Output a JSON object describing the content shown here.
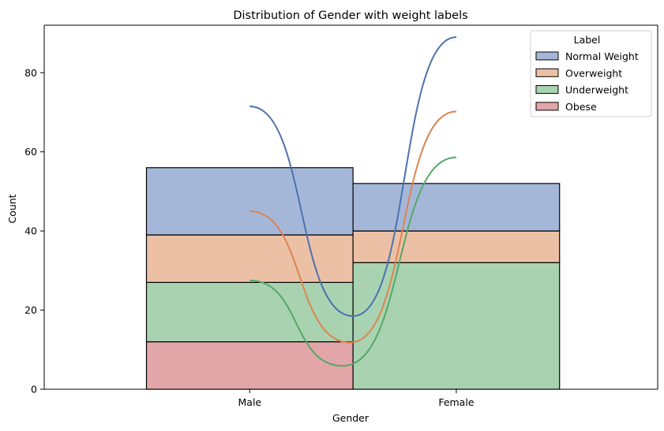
{
  "chart_data": {
    "type": "bar",
    "stacked": true,
    "title": "Distribution of Gender with weight labels",
    "xlabel": "Gender",
    "ylabel": "Count",
    "categories": [
      "Male",
      "Female"
    ],
    "ylim": [
      0,
      92
    ],
    "yticks": [
      0,
      20,
      40,
      60,
      80
    ],
    "grid": false,
    "legend_title": "Label",
    "legend_position": "top-right",
    "series": [
      {
        "name": "Normal Weight",
        "values": [
          17,
          12
        ],
        "color": "#a5b7d9",
        "kde_color": "#4c72b0",
        "kde_ends": [
          71.5,
          89
        ]
      },
      {
        "name": "Overweight",
        "values": [
          12,
          8
        ],
        "color": "#ecc0a5",
        "kde_color": "#dd8452",
        "kde_ends": [
          45,
          70.2
        ]
      },
      {
        "name": "Underweight",
        "values": [
          15,
          32
        ],
        "color": "#a9d2b1",
        "kde_color": "#55a868",
        "kde_ends": [
          27.5,
          58.6
        ]
      },
      {
        "name": "Obese",
        "values": [
          12,
          0
        ],
        "color": "#e2a6a8",
        "kde_color": "#c44e52",
        "kde_ends": null
      }
    ],
    "stack_order_bottom_to_top": [
      "Obese",
      "Underweight",
      "Overweight",
      "Normal Weight"
    ],
    "kde_minima": [
      {
        "series": "Normal Weight",
        "x": 0.0,
        "y": 18.5
      },
      {
        "series": "Overweight",
        "x": -0.03,
        "y": 11.8
      },
      {
        "series": "Underweight",
        "x": -0.1,
        "y": 5.9
      }
    ]
  }
}
